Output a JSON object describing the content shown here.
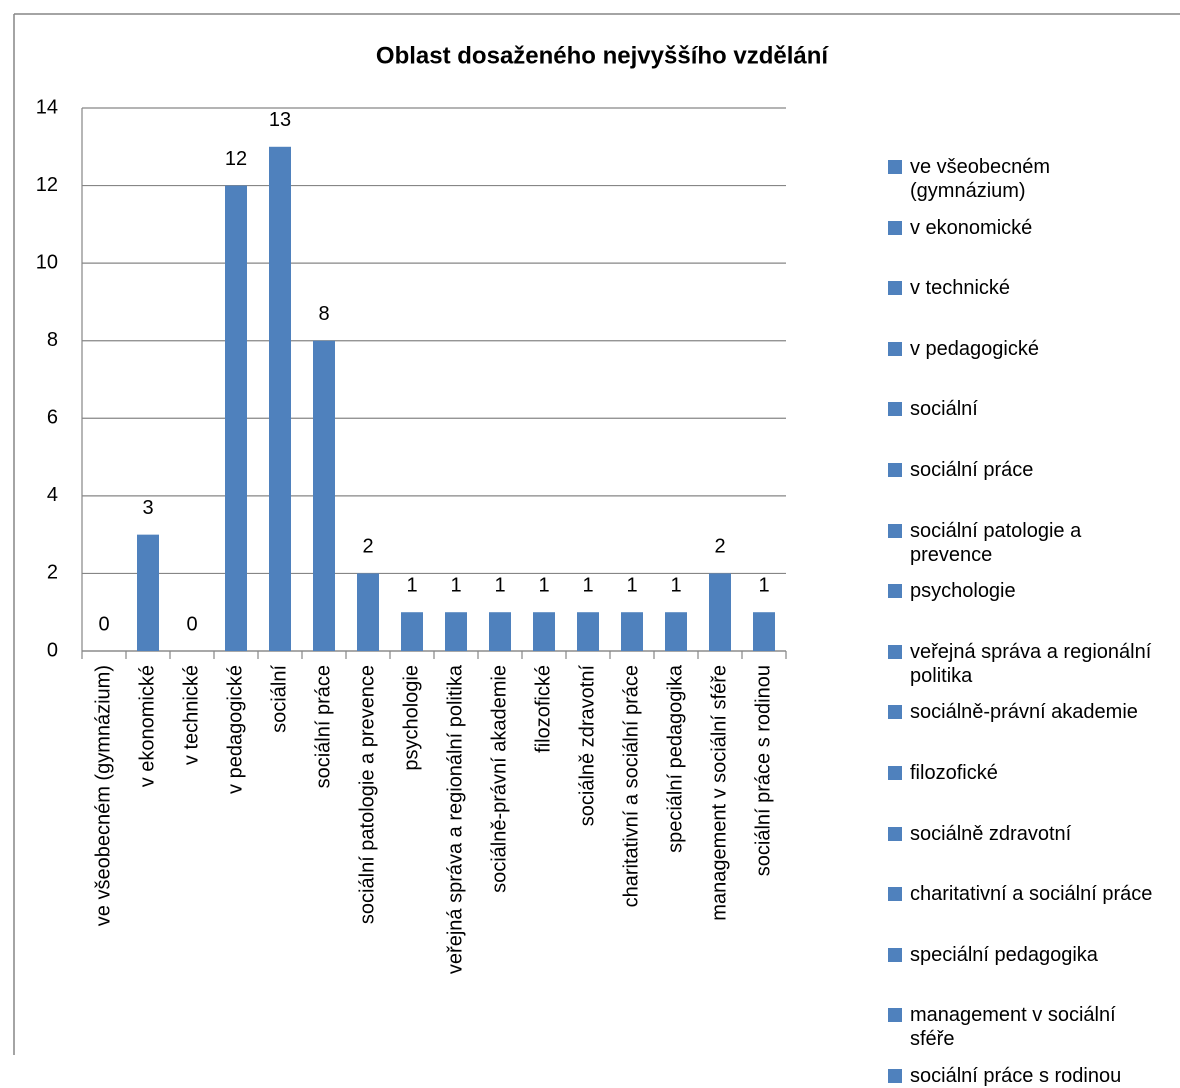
{
  "chart_data": {
    "type": "bar",
    "title": "Oblast dosaženého nejvyššího vzdělání",
    "categories": [
      "ve všeobecném (gymnázium)",
      "v ekonomické",
      "v technické",
      "v pedagogické",
      "sociální",
      "sociální práce",
      "sociální patologie a prevence",
      "psychologie",
      "veřejná správa a regionální politika",
      "sociálně-právní akademie",
      "filozofické",
      "sociálně zdravotní",
      "charitativní a sociální práce",
      "speciální pedagogika",
      "management v sociální sféře",
      "sociální práce s rodinou"
    ],
    "values": [
      0,
      3,
      0,
      12,
      13,
      8,
      2,
      1,
      1,
      1,
      1,
      1,
      1,
      1,
      2,
      1
    ],
    "color": "#4f81bd",
    "ylim": [
      0,
      14
    ],
    "yticks": [
      0,
      2,
      4,
      6,
      8,
      10,
      12,
      14
    ],
    "grid": true,
    "legend": "right"
  }
}
